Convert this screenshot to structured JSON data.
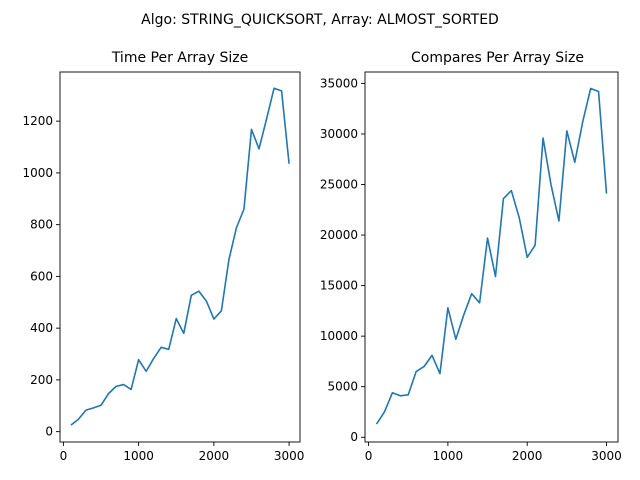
{
  "suptitle": "Algo: STRING_QUICKSORT, Array: ALMOST_SORTED",
  "colors": {
    "line": "#1f77b4",
    "axis": "#000000",
    "background": "#ffffff"
  },
  "chart_data": [
    {
      "type": "line",
      "title": "Time Per Array Size",
      "xlabel": "",
      "ylabel": "",
      "grid": false,
      "xlim": [
        -45,
        3145
      ],
      "ylim": [
        -40,
        1390
      ],
      "xticks": [
        0,
        1000,
        2000,
        3000
      ],
      "yticks": [
        0,
        200,
        400,
        600,
        800,
        1000,
        1200
      ],
      "x": [
        100,
        200,
        300,
        400,
        500,
        600,
        700,
        800,
        900,
        1000,
        1100,
        1200,
        1300,
        1400,
        1500,
        1600,
        1700,
        1800,
        1900,
        2000,
        2100,
        2200,
        2300,
        2400,
        2500,
        2600,
        2700,
        2800,
        2900,
        3000
      ],
      "series": [
        {
          "values": [
            25,
            48,
            83,
            92,
            102,
            147,
            175,
            182,
            163,
            278,
            233,
            283,
            326,
            318,
            437,
            380,
            527,
            543,
            505,
            435,
            467,
            665,
            788,
            860,
            1168,
            1093,
            1208,
            1327,
            1317,
            1035
          ]
        }
      ]
    },
    {
      "type": "line",
      "title": "Compares Per Array Size",
      "xlabel": "",
      "ylabel": "",
      "grid": false,
      "xlim": [
        -45,
        3145
      ],
      "ylim": [
        -470,
        36130
      ],
      "xticks": [
        0,
        1000,
        2000,
        3000
      ],
      "yticks": [
        0,
        5000,
        10000,
        15000,
        20000,
        25000,
        30000,
        35000
      ],
      "x": [
        100,
        200,
        300,
        400,
        500,
        600,
        700,
        800,
        900,
        1000,
        1100,
        1200,
        1300,
        1400,
        1500,
        1600,
        1700,
        1800,
        1900,
        2000,
        2100,
        2200,
        2300,
        2400,
        2500,
        2600,
        2700,
        2800,
        2900,
        3000
      ],
      "series": [
        {
          "values": [
            1300,
            2500,
            4400,
            4100,
            4200,
            6500,
            7000,
            8100,
            6300,
            12800,
            9700,
            12100,
            14200,
            13300,
            19700,
            15900,
            23600,
            24400,
            21700,
            17800,
            19000,
            29600,
            25000,
            21400,
            30300,
            27200,
            31200,
            34500,
            34200,
            24100
          ]
        }
      ]
    }
  ]
}
